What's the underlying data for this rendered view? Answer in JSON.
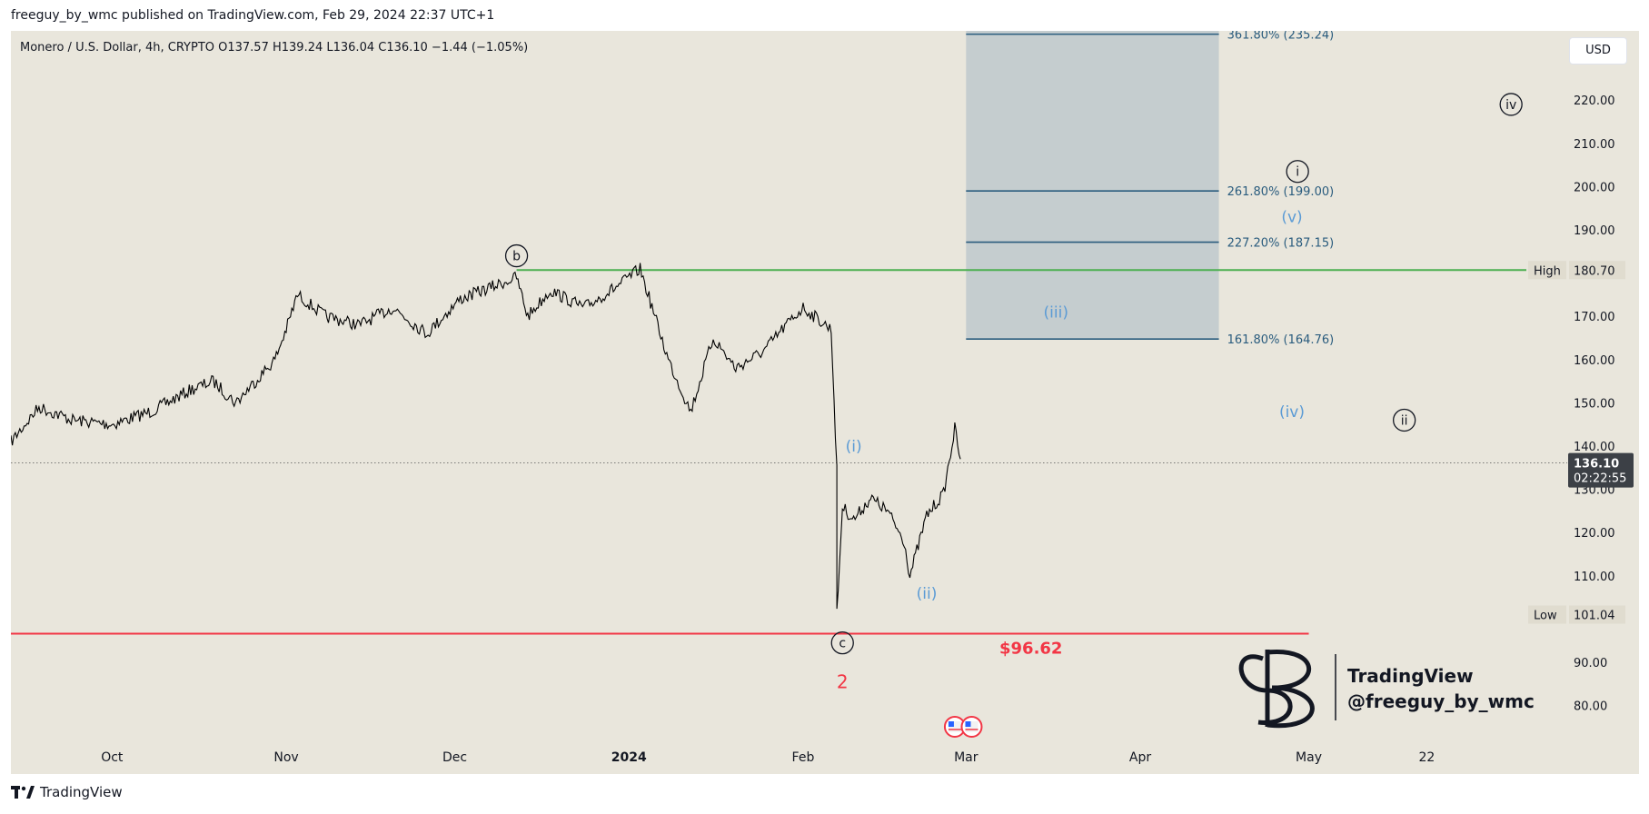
{
  "header": {
    "publisher_line": "freeguy_by_wmc published on TradingView.com, Feb 29, 2024 22:37 UTC+1"
  },
  "legend": {
    "text": "Monero / U.S. Dollar, 4h, CRYPTO  O137.57  H139.24  L136.04  C136.10  −1.44 (−1.05%)"
  },
  "currency_button": {
    "label": "USD"
  },
  "footer": {
    "brand": "TradingView"
  },
  "watermark": {
    "line1": "TradingView",
    "line2": "@freeguy_by_wmc"
  },
  "colors": {
    "background": "#e9e6dc",
    "candles": "#000000",
    "high_line": "#4caf50",
    "low_line": "#f23645",
    "fib_line": "#2a5c7e",
    "fib_zone": "#c5cdcf",
    "wave_blue": "#5b9bd5",
    "wave_label_red": "#f23645"
  },
  "chart_data": {
    "type": "line",
    "title": "Monero / U.S. Dollar, 4h, CRYPTO",
    "ylim": [
      73,
      236
    ],
    "y_ticks": [
      80,
      90,
      110,
      120,
      130,
      140,
      150,
      160,
      170,
      190,
      200,
      210,
      220
    ],
    "y_tick_labels": [
      "80.00",
      "90.00",
      "110.00",
      "120.00",
      "130.00",
      "140.00",
      "150.00",
      "160.00",
      "170.00",
      "190.00",
      "200.00",
      "210.00",
      "220.00"
    ],
    "x_labels": [
      "Oct",
      "Nov",
      "Dec",
      "2024",
      "Feb",
      "Mar",
      "Apr",
      "May",
      "22"
    ],
    "x_label_dates": [
      "2023-10-01",
      "2023-11-01",
      "2023-12-01",
      "2024-01-01",
      "2024-02-01",
      "2024-03-01",
      "2024-04-01",
      "2024-05-01",
      "2024-05-22"
    ],
    "x_range": [
      "2023-09-13",
      "2024-06-16"
    ],
    "series": [
      {
        "x": [
          "2023-09-13",
          "2023-09-18",
          "2023-09-24",
          "2023-10-01",
          "2023-10-08",
          "2023-10-15",
          "2023-10-19",
          "2023-10-23",
          "2023-10-30",
          "2023-11-01",
          "2023-11-03",
          "2023-11-08",
          "2023-11-14",
          "2023-11-20",
          "2023-11-26",
          "2023-12-02",
          "2023-12-08",
          "2023-12-12",
          "2023-12-14",
          "2023-12-18",
          "2023-12-24",
          "2023-12-30",
          "2024-01-03",
          "2024-01-08",
          "2024-01-12",
          "2024-01-16",
          "2024-01-20",
          "2024-01-25",
          "2024-01-29",
          "2024-02-01",
          "2024-02-06",
          "2024-02-07",
          "2024-02-07",
          "2024-02-08",
          "2024-02-10",
          "2024-02-13",
          "2024-02-16",
          "2024-02-19",
          "2024-02-20",
          "2024-02-23",
          "2024-02-26",
          "2024-02-28",
          "2024-02-29"
        ],
        "values": [
          141,
          149,
          146,
          145,
          148,
          153,
          155,
          150,
          160,
          167,
          175,
          170,
          168,
          172,
          166,
          174,
          177,
          179,
          170,
          176,
          172,
          177,
          181,
          160,
          148,
          165,
          158,
          162,
          168,
          172,
          167,
          135,
          101,
          126,
          123,
          128,
          125,
          118,
          110,
          124,
          129,
          144,
          137
        ]
      }
    ],
    "current_price": {
      "value": "136.10",
      "label": "136.10",
      "countdown": "02:22:55"
    },
    "dotted_price_line": 136.1,
    "high": {
      "label": "High",
      "value": 180.7,
      "value_label": "180.70"
    },
    "low": {
      "label": "Low",
      "value": 101.04,
      "value_label": "101.04"
    },
    "support": {
      "value": 96.62,
      "label": "$96.62"
    },
    "fib_zone": {
      "start": "2024-03-01",
      "end": "2024-04-15",
      "y_from": 164.76,
      "y_to": 236
    },
    "fib_levels": [
      {
        "value": 164.76,
        "label": "161.80% (164.76)"
      },
      {
        "value": 187.15,
        "label": "227.20% (187.15)"
      },
      {
        "value": 199.0,
        "label": "261.80% (199.00)"
      },
      {
        "value": 235.24,
        "label": "361.80% (235.24)"
      }
    ],
    "wave_labels": [
      {
        "text": "b",
        "style": "circled",
        "date": "2023-12-12",
        "y": 184
      },
      {
        "text": "c",
        "style": "circled",
        "date": "2024-02-08",
        "y": 94.5
      },
      {
        "text": "2",
        "style": "red",
        "date": "2024-02-08",
        "y": 85.5
      },
      {
        "text": "i",
        "style": "circled",
        "date": "2024-04-29",
        "y": 203.5
      },
      {
        "text": "ii",
        "style": "circled",
        "date": "2024-05-18",
        "y": 146
      },
      {
        "text": "iv",
        "style": "circled",
        "date": "2024-06-06",
        "y": 219
      },
      {
        "text": "(i)",
        "style": "blue",
        "date": "2024-02-10",
        "y": 140
      },
      {
        "text": "(ii)",
        "style": "blue",
        "date": "2024-02-23",
        "y": 106
      },
      {
        "text": "(iii)",
        "style": "blue",
        "date": "2024-03-17",
        "y": 171
      },
      {
        "text": "(iv)",
        "style": "blue",
        "date": "2024-04-28",
        "y": 148
      },
      {
        "text": "(v)",
        "style": "blue",
        "date": "2024-04-28",
        "y": 193
      }
    ]
  }
}
